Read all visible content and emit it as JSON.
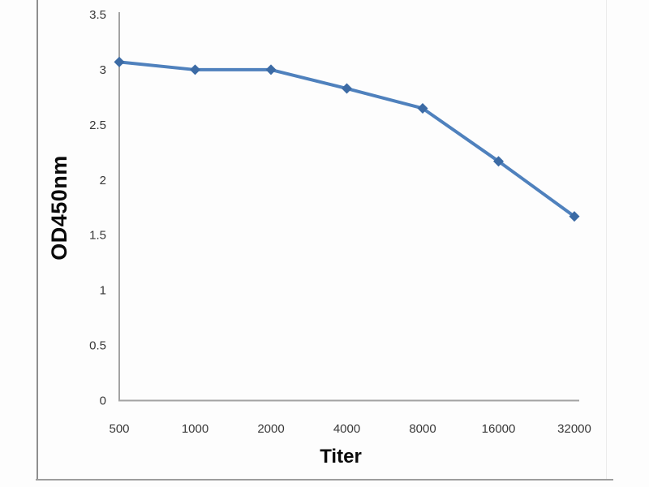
{
  "chart_data": {
    "type": "line",
    "title": "",
    "xlabel": "Titer",
    "ylabel": "OD450nm",
    "categories": [
      "500",
      "1000",
      "2000",
      "4000",
      "8000",
      "16000",
      "32000"
    ],
    "series": [
      {
        "name": "OD450nm",
        "values": [
          3.07,
          3.0,
          3.0,
          2.83,
          2.65,
          2.17,
          1.67
        ]
      }
    ],
    "ylim": [
      0,
      3.5
    ],
    "yticks": [
      0,
      0.5,
      1,
      1.5,
      2,
      2.5,
      3,
      3.5
    ],
    "grid": false,
    "legend": false,
    "marker": "diamond",
    "colors": {
      "line": "#4f81bd",
      "marker": "#3c6ba5",
      "axis": "#a3a3a3",
      "tick_label": "#383838",
      "axis_title": "#0a0a0a"
    }
  }
}
